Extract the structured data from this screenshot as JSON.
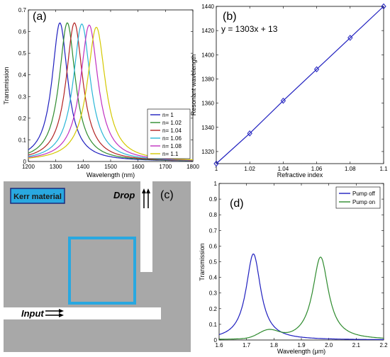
{
  "colors": {
    "blue": "#1f1fbf",
    "green": "#2e8b2e",
    "red": "#b22222",
    "cyan": "#29b6d6",
    "magenta": "#c030c0",
    "yellow": "#d4c800",
    "kerr": "#29a8e0",
    "device_gray": "#a8a8a8"
  },
  "chart_data": [
    {
      "panel": "(a)",
      "type": "line",
      "xlabel": "Wavelength (nm)",
      "ylabel": "Transmission",
      "xlim": [
        1200,
        1800
      ],
      "ylim": [
        0,
        0.7
      ],
      "xticks": [
        "1200",
        "1300",
        "1400",
        "1500",
        "1600",
        "1700",
        "1800"
      ],
      "yticks": [
        "0",
        "0.1",
        "0.2",
        "0.3",
        "0.4",
        "0.5",
        "0.6",
        "0.7"
      ],
      "legend_position": "lower-right",
      "series": [
        {
          "name": "n= 1",
          "color": "blue",
          "peak_x": 1315,
          "peak_y": 0.64,
          "fwhm": 70
        },
        {
          "name": "n= 1.02",
          "color": "green",
          "peak_x": 1342,
          "peak_y": 0.64,
          "fwhm": 72
        },
        {
          "name": "n= 1.04",
          "color": "red",
          "peak_x": 1368,
          "peak_y": 0.64,
          "fwhm": 74
        },
        {
          "name": "n= 1.06",
          "color": "cyan",
          "peak_x": 1395,
          "peak_y": 0.635,
          "fwhm": 76
        },
        {
          "name": "n= 1.08",
          "color": "magenta",
          "peak_x": 1422,
          "peak_y": 0.63,
          "fwhm": 78
        },
        {
          "name": "n= 1.1",
          "color": "yellow",
          "peak_x": 1448,
          "peak_y": 0.62,
          "fwhm": 80
        }
      ]
    },
    {
      "panel": "(b)",
      "type": "line",
      "xlabel": "Refractive index",
      "ylabel": "Resonant wavelength",
      "xlim": [
        1,
        1.1
      ],
      "ylim": [
        1310,
        1440
      ],
      "xticks": [
        "1",
        "1.02",
        "1.04",
        "1.06",
        "1.08",
        "1.1"
      ],
      "yticks": [
        "1320",
        "1340",
        "1360",
        "1380",
        "1400",
        "1420",
        "1440"
      ],
      "annotation": "y = 1303x + 13",
      "series": [
        {
          "color": "blue",
          "x": [
            1,
            1.02,
            1.04,
            1.06,
            1.08,
            1.1
          ],
          "y": [
            1310,
            1335,
            1362,
            1388,
            1414,
            1440
          ]
        }
      ]
    },
    {
      "panel": "(d)",
      "type": "line",
      "xlabel": "Wavelength (μm)",
      "ylabel": "Transmission",
      "xlim": [
        1.6,
        2.2
      ],
      "ylim": [
        0,
        1
      ],
      "xticks": [
        "1.6",
        "1.7",
        "1.8",
        "1.9",
        "2.0",
        "2.1",
        "2.2"
      ],
      "yticks": [
        "0",
        "0.1",
        "0.2",
        "0.3",
        "0.4",
        "0.5",
        "0.6",
        "0.7",
        "0.8",
        "0.9",
        "1"
      ],
      "legend_position": "top-right",
      "series": [
        {
          "name": "Pump off",
          "color": "blue",
          "peak_x": 1.725,
          "peak_y": 0.55,
          "fwhm": 0.065
        },
        {
          "name": "Pump on",
          "color": "green",
          "peak_x": 1.97,
          "peak_y": 0.53,
          "fwhm": 0.07
        }
      ]
    }
  ],
  "panel_c": {
    "label": "(c)",
    "kerr_label": "Kerr material",
    "drop_label": "Drop",
    "input_label": "Input"
  }
}
